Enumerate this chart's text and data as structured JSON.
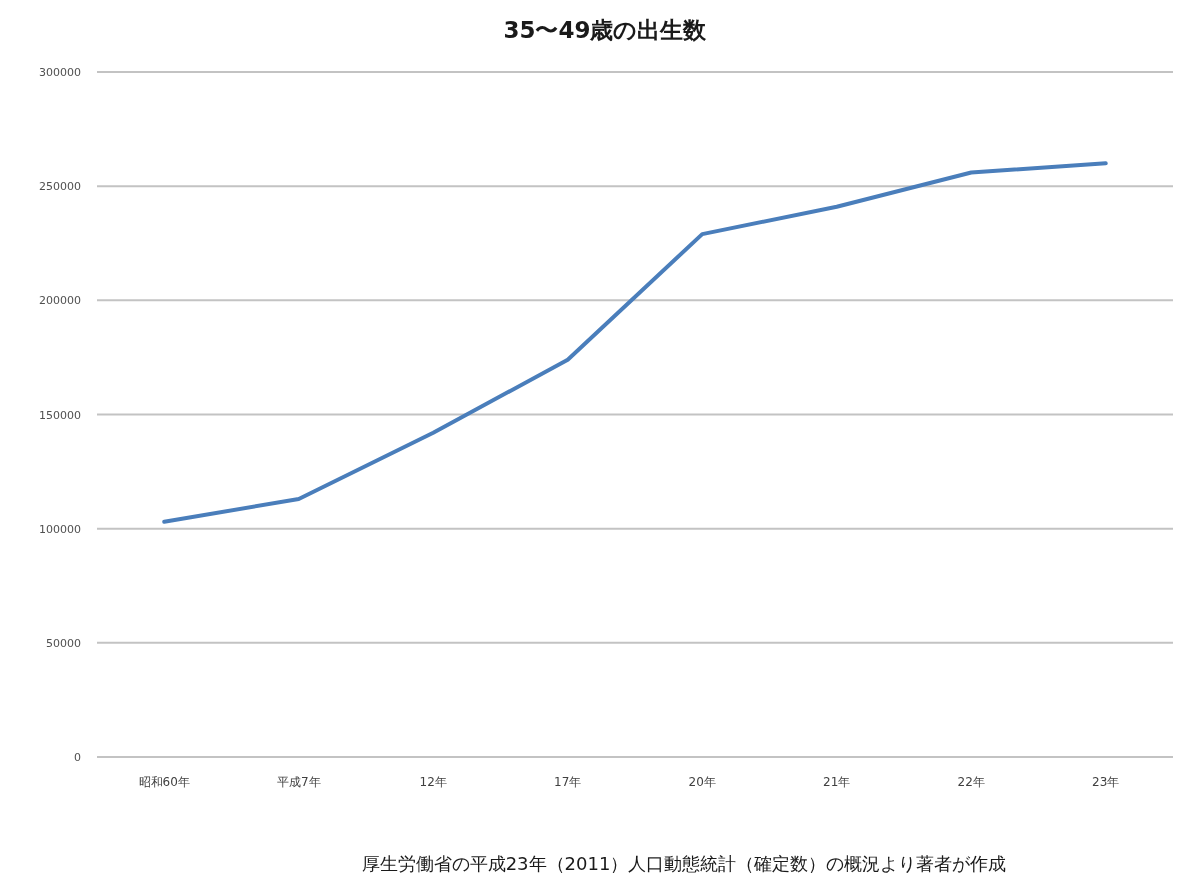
{
  "chart_data": {
    "type": "line",
    "title": "35〜49歳の出生数",
    "categories": [
      "昭和60年",
      "平成7年",
      "12年",
      "17年",
      "20年",
      "21年",
      "22年",
      "23年"
    ],
    "series": [
      {
        "color": "#4a7ebb",
        "values": [
          103000,
          113000,
          142000,
          174000,
          229000,
          241000,
          256000,
          260000
        ]
      }
    ],
    "ylim": [
      0,
      300000
    ],
    "yticks": [
      0,
      50000,
      100000,
      150000,
      200000,
      250000,
      300000
    ],
    "grid": "y",
    "annotations": [
      "厚生労働省の平成23年（2011）人口動態統計（確定数）の概況より著者が作成"
    ]
  }
}
